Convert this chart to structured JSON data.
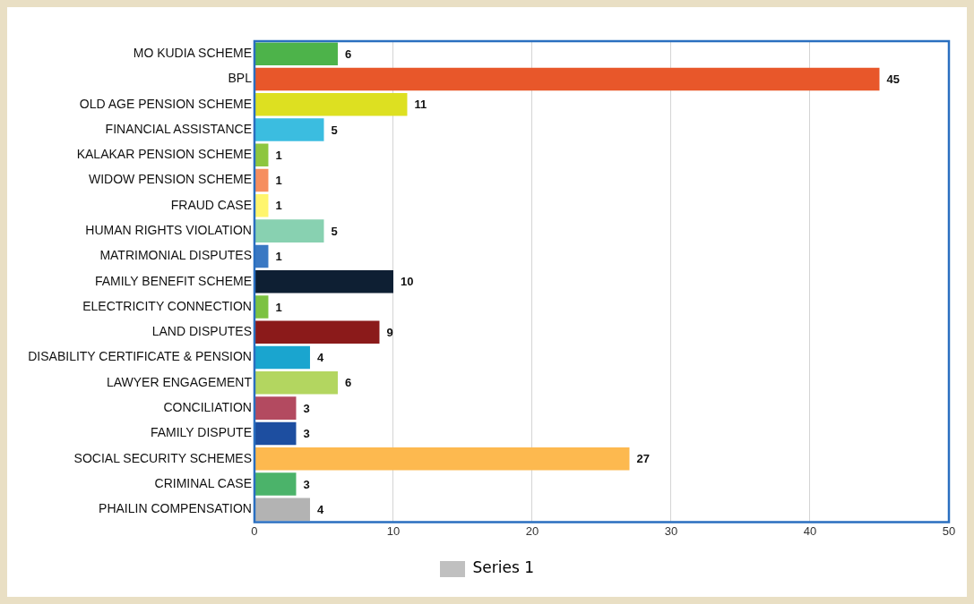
{
  "chart_data": {
    "type": "bar",
    "orientation": "horizontal",
    "categories": [
      "MO KUDIA SCHEME",
      "BPL",
      "OLD AGE PENSION SCHEME",
      "FINANCIAL ASSISTANCE",
      "KALAKAR PENSION SCHEME",
      "WIDOW PENSION SCHEME",
      "FRAUD CASE",
      "HUMAN RIGHTS VIOLATION",
      "MATRIMONIAL DISPUTES",
      "FAMILY BENEFIT SCHEME",
      "ELECTRICITY CONNECTION",
      "LAND DISPUTES",
      "DISABILITY CERTIFICATE & PENSION",
      "LAWYER ENGAGEMENT",
      "CONCILIATION",
      "FAMILY DISPUTE",
      "SOCIAL SECURITY SCHEMES",
      "CRIMINAL CASE",
      "PHAILIN COMPENSATION"
    ],
    "series": [
      {
        "name": "Series 1",
        "color": "#c0c0c0",
        "colors": [
          "#4db34a",
          "#e8572a",
          "#dde021",
          "#3bbde0",
          "#8dc63f",
          "#f68e5f",
          "#fff56d",
          "#88d1b1",
          "#3a78c3",
          "#0e1f33",
          "#7cc242",
          "#8b1a1a",
          "#1aa5cf",
          "#b3d660",
          "#b34a60",
          "#1d4ea0",
          "#fdb94f",
          "#4bb36a",
          "#b3b3b3"
        ],
        "values": [
          6,
          45,
          11,
          5,
          1,
          1,
          1,
          5,
          1,
          10,
          1,
          9,
          4,
          6,
          3,
          3,
          27,
          3,
          4
        ]
      }
    ],
    "xlim": [
      0,
      50
    ],
    "xticks": [
      0,
      10,
      20,
      30,
      40,
      50
    ],
    "grid": "x",
    "legend": "bottom",
    "data_labels": true
  }
}
